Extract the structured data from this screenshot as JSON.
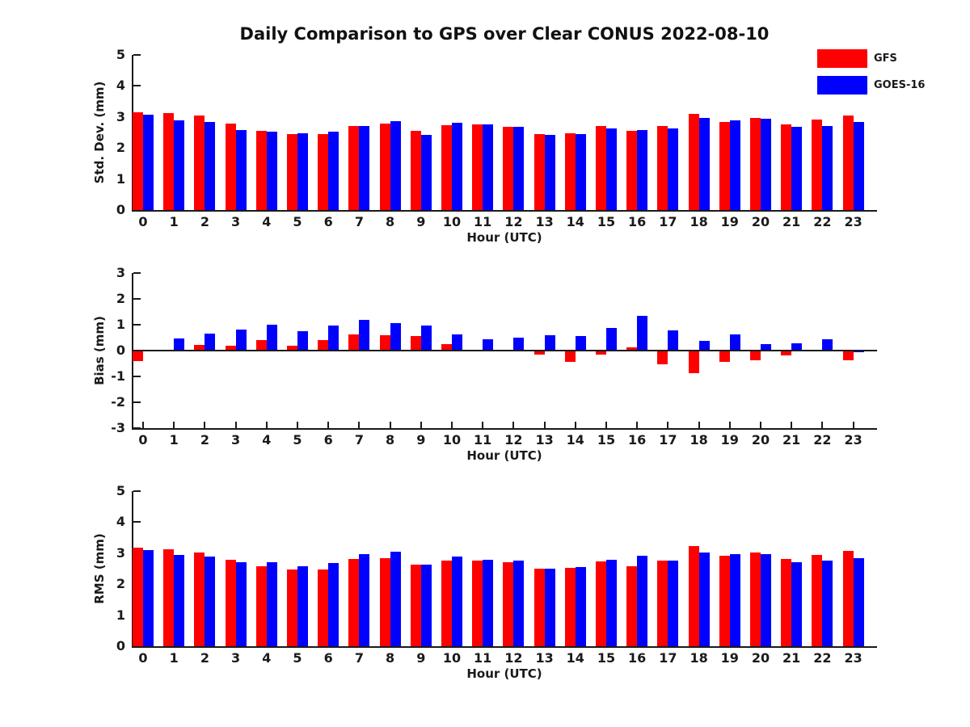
{
  "title": "Daily Comparison to GPS over Clear CONUS 2022-08-10",
  "legend": {
    "items": [
      {
        "label": "GFS",
        "color": "#ff0000"
      },
      {
        "label": "GOES-16",
        "color": "#0000ff"
      }
    ]
  },
  "colors": {
    "gfs": "#ff0000",
    "goes16": "#0000ff",
    "axis": "#1a1a1a"
  },
  "chart_data": [
    {
      "type": "bar",
      "panel": "std-dev",
      "ylabel": "Std. Dev. (mm)",
      "xlabel": "Hour (UTC)",
      "ylim": [
        0,
        5
      ],
      "yticks": [
        0,
        1,
        2,
        3,
        4,
        5
      ],
      "grid": false,
      "legend_position": "top-right",
      "categories": [
        "0",
        "1",
        "2",
        "3",
        "4",
        "5",
        "6",
        "7",
        "8",
        "9",
        "10",
        "11",
        "12",
        "13",
        "14",
        "15",
        "16",
        "17",
        "18",
        "19",
        "20",
        "21",
        "22",
        "23"
      ],
      "series": [
        {
          "name": "GFS",
          "color": "#ff0000",
          "values": [
            3.15,
            3.13,
            3.05,
            2.78,
            2.55,
            2.44,
            2.44,
            2.72,
            2.78,
            2.55,
            2.73,
            2.76,
            2.68,
            2.45,
            2.48,
            2.7,
            2.55,
            2.72,
            3.1,
            2.85,
            2.98,
            2.76,
            2.91,
            3.04
          ]
        },
        {
          "name": "GOES-16",
          "color": "#0000ff",
          "values": [
            3.08,
            2.9,
            2.83,
            2.57,
            2.52,
            2.47,
            2.53,
            2.72,
            2.86,
            2.43,
            2.82,
            2.75,
            2.68,
            2.42,
            2.45,
            2.63,
            2.58,
            2.62,
            2.97,
            2.89,
            2.93,
            2.69,
            2.72,
            2.84
          ]
        }
      ]
    },
    {
      "type": "bar",
      "panel": "bias",
      "ylabel": "Bias (mm)",
      "xlabel": "Hour (UTC)",
      "ylim": [
        -3,
        3
      ],
      "yticks": [
        -3,
        -2,
        -1,
        0,
        1,
        2,
        3
      ],
      "grid": false,
      "categories": [
        "0",
        "1",
        "2",
        "3",
        "4",
        "5",
        "6",
        "7",
        "8",
        "9",
        "10",
        "11",
        "12",
        "13",
        "14",
        "15",
        "16",
        "17",
        "18",
        "19",
        "20",
        "21",
        "22",
        "23"
      ],
      "series": [
        {
          "name": "GFS",
          "color": "#ff0000",
          "values": [
            -0.42,
            0.03,
            0.23,
            0.2,
            0.4,
            0.2,
            0.4,
            0.63,
            0.58,
            0.55,
            0.24,
            0.0,
            -0.04,
            -0.16,
            -0.45,
            -0.15,
            0.12,
            -0.52,
            -0.89,
            -0.45,
            -0.38,
            -0.19,
            0.0,
            -0.36
          ]
        },
        {
          "name": "GOES-16",
          "color": "#0000ff",
          "values": [
            0.0,
            0.48,
            0.66,
            0.8,
            1.0,
            0.76,
            0.97,
            1.18,
            1.06,
            0.97,
            0.64,
            0.45,
            0.49,
            0.6,
            0.57,
            0.87,
            1.35,
            0.78,
            0.36,
            0.64,
            0.25,
            0.28,
            0.44,
            -0.06
          ]
        }
      ]
    },
    {
      "type": "bar",
      "panel": "rms",
      "ylabel": "RMS (mm)",
      "xlabel": "Hour (UTC)",
      "ylim": [
        0,
        5
      ],
      "yticks": [
        0,
        1,
        2,
        3,
        4,
        5
      ],
      "grid": false,
      "categories": [
        "0",
        "1",
        "2",
        "3",
        "4",
        "5",
        "6",
        "7",
        "8",
        "9",
        "10",
        "11",
        "12",
        "13",
        "14",
        "15",
        "16",
        "17",
        "18",
        "19",
        "20",
        "21",
        "22",
        "23"
      ],
      "series": [
        {
          "name": "GFS",
          "color": "#ff0000",
          "values": [
            3.18,
            3.12,
            3.03,
            2.78,
            2.58,
            2.47,
            2.47,
            2.8,
            2.85,
            2.62,
            2.75,
            2.75,
            2.71,
            2.5,
            2.53,
            2.74,
            2.57,
            2.77,
            3.23,
            2.92,
            3.03,
            2.8,
            2.93,
            3.08
          ]
        },
        {
          "name": "GOES-16",
          "color": "#0000ff",
          "values": [
            3.1,
            2.95,
            2.9,
            2.7,
            2.72,
            2.58,
            2.68,
            2.97,
            3.05,
            2.64,
            2.9,
            2.79,
            2.75,
            2.5,
            2.55,
            2.79,
            2.92,
            2.75,
            3.01,
            2.96,
            2.96,
            2.71,
            2.76,
            2.84
          ]
        }
      ]
    }
  ]
}
